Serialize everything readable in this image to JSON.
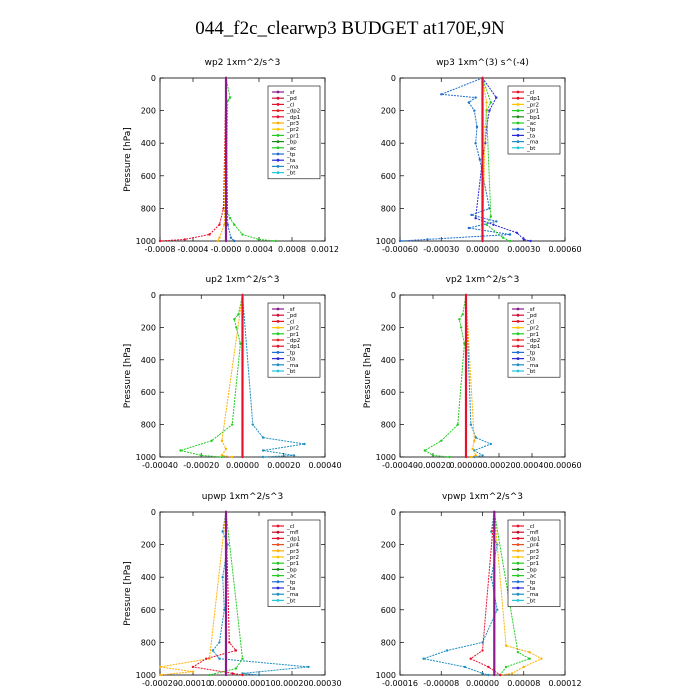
{
  "figure_title": "044_f2c_clearwp3  BUDGET at170E,9N",
  "chart_data": [
    {
      "type": "line",
      "title": "wp2   1xm^2/s^3",
      "ylabel": "Pressure [hPa]",
      "ylim": [
        1000,
        0
      ],
      "xlim": [
        -0.0008,
        0.0012
      ],
      "xticks": [
        "-0.0008",
        "-0.0004",
        "-0.0000",
        "0.0004",
        "0.0008",
        "0.0012"
      ],
      "yticks": [
        "0",
        "200",
        "400",
        "600",
        "800",
        "1000"
      ],
      "legend": [
        "_sf",
        "_pd",
        "_cl",
        "_dp2",
        "_dp1",
        "_pr3",
        "_pr2",
        "_pr1",
        "_bp",
        "_ac",
        "_tp",
        "_ta",
        "_ma",
        "_bt"
      ],
      "series": [
        {
          "name": "_pd",
          "color": "#e8102a",
          "p": [
            0,
            800,
            900,
            960,
            990,
            1000
          ],
          "x": [
            0,
            -3e-05,
            -8e-05,
            -0.0002,
            -0.0005,
            -0.0008
          ]
        },
        {
          "name": "_pr1",
          "color": "#22cc22",
          "p": [
            0,
            120,
            140,
            800,
            860,
            900,
            960,
            990,
            1000
          ],
          "x": [
            0,
            5e-05,
            2e-05,
            0,
            5e-05,
            0.0001,
            0.0002,
            0.0004,
            0.0006
          ]
        },
        {
          "name": "_pr3",
          "color": "#ffb000",
          "p": [
            0,
            900,
            980,
            1000
          ],
          "x": [
            0,
            -2e-05,
            -8e-05,
            -0.0001
          ]
        },
        {
          "name": "_ta",
          "color": "#1e6fd0",
          "p": [
            0,
            900,
            980,
            1000
          ],
          "x": [
            0,
            2e-05,
            6e-05,
            0.0001
          ]
        },
        {
          "name": "_bt",
          "color": "#8b1a8b",
          "p": [
            0,
            1000
          ],
          "x": [
            0,
            0
          ]
        }
      ]
    },
    {
      "type": "line",
      "title": "wp3   1xm^(3) s^(-4)",
      "ylabel": "",
      "ylim": [
        1000,
        0
      ],
      "xlim": [
        -0.0006,
        0.0006
      ],
      "xticks": [
        "-0.00060",
        "-0.00030",
        "0.00000",
        "0.00030",
        "0.00060"
      ],
      "yticks": [
        "0",
        "200",
        "400",
        "600",
        "800",
        "1000"
      ],
      "legend": [
        "_cl",
        "_dp1",
        "_pr2",
        "_pr1",
        "_bp1",
        "_ac",
        "_tp",
        "_ta",
        "_ma",
        "_bt"
      ],
      "series": [
        {
          "name": "_tp",
          "color": "#1e6fd0",
          "p": [
            0,
            100,
            120,
            150,
            200,
            300,
            400,
            500,
            800,
            840,
            880,
            920,
            960,
            990,
            1000
          ],
          "x": [
            0,
            -0.0003,
            -5e-05,
            -0.0001,
            -6e-05,
            -4e-05,
            -5e-05,
            -2e-05,
            5e-05,
            -8e-05,
            0.0001,
            -0.0001,
            0.0002,
            -0.0004,
            -0.0006
          ]
        },
        {
          "name": "_ta",
          "color": "#2a2ad8",
          "p": [
            0,
            120,
            200,
            300,
            400,
            500,
            860,
            900,
            950,
            990,
            1000
          ],
          "x": [
            0,
            0.0001,
            5e-05,
            3e-05,
            2e-05,
            0,
            -5e-05,
            8e-05,
            0.00025,
            0.0003,
            0.00035
          ]
        },
        {
          "name": "_ac",
          "color": "#22cc22",
          "p": [
            0,
            150,
            200,
            850,
            900,
            980,
            1000
          ],
          "x": [
            0,
            6e-05,
            3e-05,
            6e-05,
            3e-05,
            0.00015,
            0.0002
          ]
        },
        {
          "name": "_pr2",
          "color": "#ffb000",
          "p": [
            0,
            150,
            300,
            1000
          ],
          "x": [
            0,
            3e-05,
            2e-05,
            0
          ]
        },
        {
          "name": "_cl",
          "color": "#e8102a",
          "p": [
            0,
            1000
          ],
          "x": [
            0,
            0
          ]
        }
      ]
    },
    {
      "type": "line",
      "title": "up2   1xm^2/s^3",
      "ylabel": "Pressure [hPa]",
      "ylim": [
        1000,
        0
      ],
      "xlim": [
        -0.0004,
        0.0004
      ],
      "xticks": [
        "-0.00040",
        "-0.00020",
        "0.00000",
        "0.00020",
        "0.00040"
      ],
      "yticks": [
        "0",
        "200",
        "400",
        "600",
        "800",
        "1000"
      ],
      "legend": [
        "_sf",
        "_pd",
        "_cl",
        "_pr2",
        "_pr1",
        "_dp2",
        "_dp1",
        "_tp",
        "_ta",
        "_ma",
        "_bt"
      ],
      "series": [
        {
          "name": "_dp2",
          "color": "#22cc22",
          "p": [
            0,
            120,
            150,
            200,
            300,
            800,
            900,
            960,
            990,
            1000
          ],
          "x": [
            0,
            -2e-05,
            -4e-05,
            -3e-05,
            -1e-05,
            -5e-05,
            -0.00015,
            -0.0003,
            -0.0002,
            -0.0001
          ]
        },
        {
          "name": "_tp",
          "color": "#1e8fc0",
          "p": [
            0,
            800,
            880,
            920,
            960,
            990,
            1000
          ],
          "x": [
            0,
            5e-05,
            0.0001,
            0.0003,
            0.0001,
            0.00025,
            0.0001
          ]
        },
        {
          "name": "_pr2",
          "color": "#ffb000",
          "p": [
            0,
            900,
            950,
            990,
            1000
          ],
          "x": [
            0,
            -0.0001,
            -8e-05,
            -0.0001,
            -5e-05
          ]
        },
        {
          "name": "_sf",
          "color": "#e8102a",
          "p": [
            0,
            1000
          ],
          "x": [
            0,
            0
          ]
        }
      ]
    },
    {
      "type": "line",
      "title": "vp2   1xm^2/s^3",
      "ylabel": "Pressure [hPa]",
      "ylim": [
        1000,
        0
      ],
      "xlim": [
        -0.0004,
        0.0006
      ],
      "xticks": [
        "-0.00040",
        "-0.00020",
        "0.00000",
        "0.00020",
        "0.00040",
        "0.00060"
      ],
      "yticks": [
        "0",
        "200",
        "400",
        "600",
        "800",
        "1000"
      ],
      "legend": [
        "_sf",
        "_pd",
        "_cl",
        "_pr2",
        "_pr1",
        "_dp2",
        "_dp1",
        "_tp",
        "_ta",
        "_ma",
        "_bt"
      ],
      "series": [
        {
          "name": "_dp2",
          "color": "#22cc22",
          "p": [
            0,
            120,
            150,
            200,
            300,
            800,
            900,
            960,
            990,
            1000
          ],
          "x": [
            0,
            -2e-05,
            -4e-05,
            -3e-05,
            -1e-05,
            -5e-05,
            -0.00015,
            -0.00025,
            -0.0002,
            -0.0001
          ]
        },
        {
          "name": "_tp",
          "color": "#1e8fc0",
          "p": [
            0,
            800,
            880,
            920,
            960,
            990,
            1000
          ],
          "x": [
            0,
            3e-05,
            6e-05,
            0.00015,
            5e-05,
            0.0001,
            5e-05
          ]
        },
        {
          "name": "_pr2",
          "color": "#ffb000",
          "p": [
            0,
            900,
            950,
            990,
            1000
          ],
          "x": [
            0,
            5e-05,
            4e-05,
            6e-05,
            3e-05
          ]
        },
        {
          "name": "_sf",
          "color": "#e8102a",
          "p": [
            0,
            1000
          ],
          "x": [
            0,
            0
          ]
        }
      ]
    },
    {
      "type": "line",
      "title": "upwp   1xm^2/s^3",
      "ylabel": "Pressure [hPa]",
      "ylim": [
        1000,
        0
      ],
      "xlim": [
        -0.0002,
        0.0003
      ],
      "xticks": [
        "-0.00020",
        "-0.00010",
        "0.00000",
        "0.00010",
        "0.00020",
        "0.00030"
      ],
      "yticks": [
        "0",
        "200",
        "400",
        "600",
        "800",
        "1000"
      ],
      "legend": [
        "_cl",
        "_mfl",
        "_dp1",
        "_pr4",
        "_pr3",
        "_pr2",
        "_pr1",
        "_bp",
        "_ac",
        "_tp",
        "_ta",
        "_ma",
        "_bt"
      ],
      "series": [
        {
          "name": "_tp",
          "color": "#1e8fc0",
          "p": [
            0,
            120,
            200,
            400,
            600,
            800,
            850,
            900,
            950,
            990,
            1000
          ],
          "x": [
            0,
            -1e-05,
            5e-06,
            -1e-05,
            -5e-06,
            -2e-05,
            -4e-05,
            -2e-05,
            0.00025,
            5e-05,
            0.0001
          ]
        },
        {
          "name": "_pr2",
          "color": "#ffb000",
          "p": [
            0,
            900,
            950,
            980,
            1000
          ],
          "x": [
            0,
            -5e-05,
            -0.0002,
            -0.0001,
            -0.0002
          ]
        },
        {
          "name": "_dp1",
          "color": "#e8102a",
          "p": [
            0,
            800,
            850,
            900,
            950,
            990,
            1000
          ],
          "x": [
            0,
            1e-05,
            3e-05,
            -6e-05,
            -0.0001,
            2e-05,
            5e-05
          ]
        },
        {
          "name": "_ac",
          "color": "#22cc22",
          "p": [
            0,
            900,
            960,
            1000
          ],
          "x": [
            0,
            5e-05,
            3e-05,
            -5e-05
          ]
        },
        {
          "name": "_bt",
          "color": "#8b1a8b",
          "p": [
            0,
            1000
          ],
          "x": [
            0,
            0
          ]
        }
      ]
    },
    {
      "type": "line",
      "title": "vpwp   1xm^2/s^3",
      "ylabel": "",
      "ylim": [
        1000,
        0
      ],
      "xlim": [
        -0.00016,
        0.00012
      ],
      "xticks": [
        "-0.00016",
        "-0.00008",
        "0.00000",
        "0.00008",
        "0.00012"
      ],
      "yticks": [
        "0",
        "200",
        "400",
        "600",
        "800",
        "1000"
      ],
      "legend": [
        "_cl",
        "_mfl",
        "_dp1",
        "_pr4",
        "_pr3",
        "_pr2",
        "_pr1",
        "_bp",
        "_ac",
        "_tp",
        "_ta",
        "_ma",
        "_bt"
      ],
      "series": [
        {
          "name": "_tp",
          "color": "#1e8fc0",
          "p": [
            0,
            120,
            200,
            400,
            600,
            800,
            850,
            900,
            950,
            990,
            1000
          ],
          "x": [
            0,
            -5e-06,
            5e-06,
            -5e-06,
            5e-06,
            -2e-05,
            -8e-05,
            -0.00012,
            -5e-05,
            -2e-05,
            -1e-05
          ]
        },
        {
          "name": "_pr1",
          "color": "#ffb000",
          "p": [
            0,
            820,
            860,
            900,
            950,
            990,
            1000
          ],
          "x": [
            0,
            2e-05,
            6e-05,
            8e-05,
            5e-05,
            3e-05,
            1e-05
          ]
        },
        {
          "name": "_ac",
          "color": "#22cc22",
          "p": [
            0,
            860,
            900,
            950,
            1000
          ],
          "x": [
            0,
            4e-05,
            6e-05,
            2e-05,
            1e-05
          ]
        },
        {
          "name": "_dp1",
          "color": "#e8102a",
          "p": [
            0,
            850,
            900,
            950,
            1000
          ],
          "x": [
            0,
            -2e-05,
            -4e-05,
            -1e-05,
            1e-05
          ]
        },
        {
          "name": "_bt",
          "color": "#8b1a8b",
          "p": [
            0,
            1000
          ],
          "x": [
            0,
            0
          ]
        }
      ]
    }
  ],
  "legend_colors": {
    "_sf": "#8b1a8b",
    "_pd": "#d0103a",
    "_cl": "#e8102a",
    "_mfl": "#c0102a",
    "_dp2": "#e82020",
    "_dp1": "#e8102a",
    "_pr4": "#e85020",
    "_pr3": "#ffb000",
    "_pr2": "#ffc800",
    "_pr1": "#22cc22",
    "_bp": "#1a8a1a",
    "_bp1": "#1a8a1a",
    "_ac": "#22cc22",
    "_tp": "#1e6fd0",
    "_ta": "#2a2ad8",
    "_ma": "#1e8fc0",
    "_bt": "#22c8d8"
  }
}
